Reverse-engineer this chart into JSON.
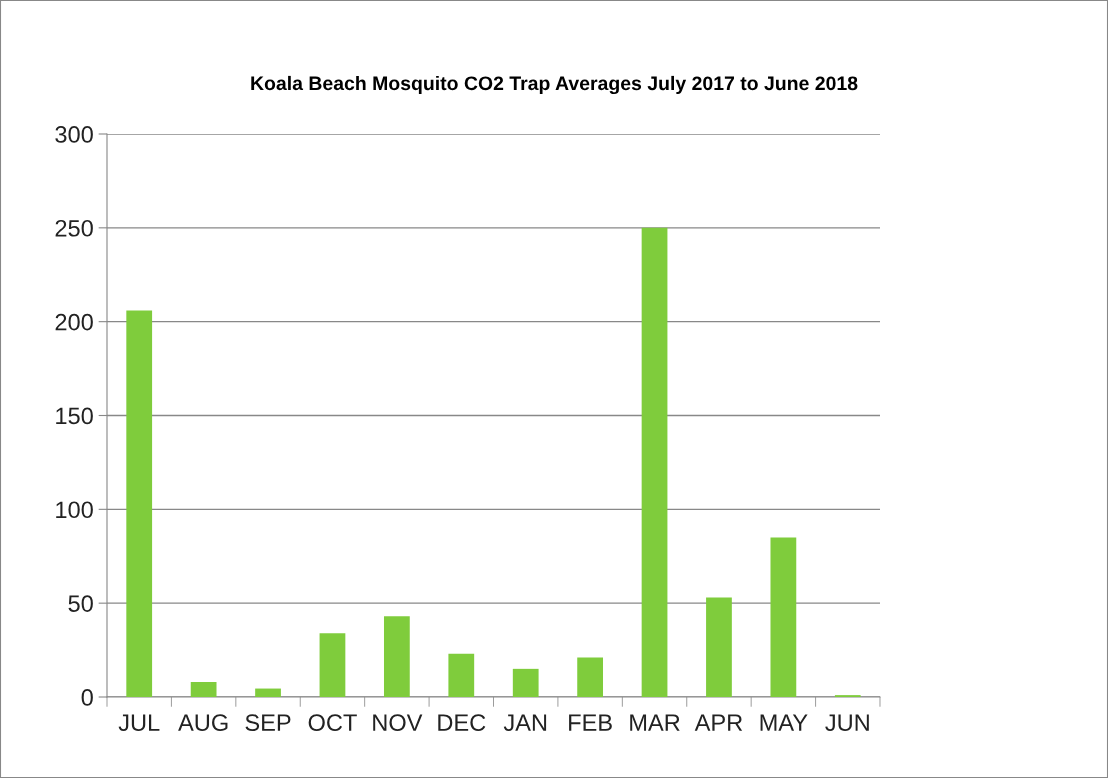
{
  "chart_data": {
    "type": "bar",
    "title": "Koala Beach Mosquito CO2 Trap Averages July 2017 to June 2018",
    "categories": [
      "JUL",
      "AUG",
      "SEP",
      "OCT",
      "NOV",
      "DEC",
      "JAN",
      "FEB",
      "MAR",
      "APR",
      "MAY",
      "JUN"
    ],
    "values": [
      206,
      8,
      4.5,
      34,
      43,
      23,
      15,
      21,
      250,
      53,
      85,
      1
    ],
    "color": "#7fcc3c",
    "ylim": [
      0,
      300
    ],
    "yticks": [
      0,
      50,
      100,
      150,
      200,
      250,
      300
    ],
    "grid": "y",
    "legend": false
  }
}
